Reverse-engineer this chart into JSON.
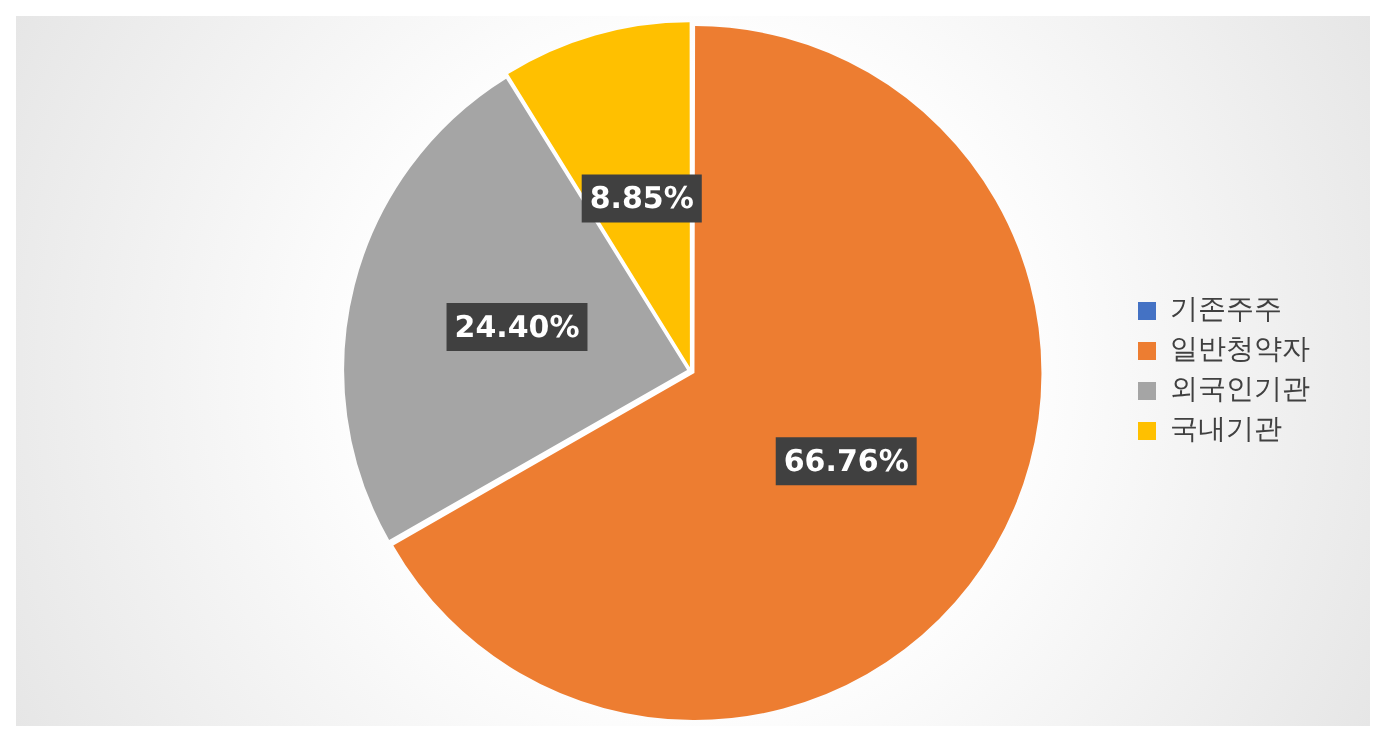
{
  "chart_data": {
    "type": "pie",
    "categories": [
      "기존주주",
      "일반청약자",
      "외국인기관",
      "국내기관"
    ],
    "values": [
      0,
      66.76,
      24.4,
      8.85
    ],
    "colors": [
      "#4472c4",
      "#ed7d31",
      "#a5a5a5",
      "#ffc000"
    ],
    "value_labels": [
      null,
      "66.76%",
      "24.40%",
      "8.85%"
    ],
    "legend": "right"
  }
}
